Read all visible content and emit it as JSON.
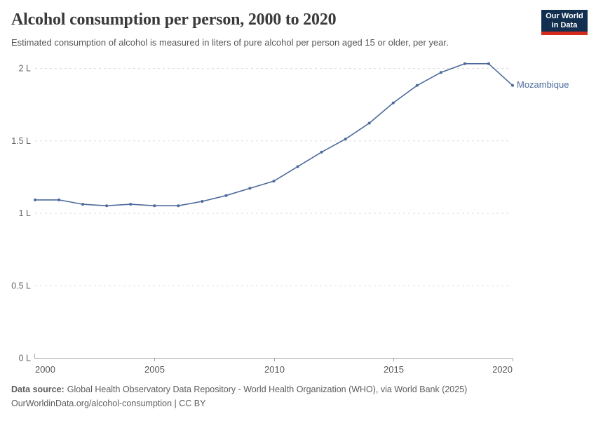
{
  "chart_data": {
    "type": "line",
    "title": "Alcohol consumption per person, 2000 to 2020",
    "subtitle": "Estimated consumption of alcohol is measured in liters of pure alcohol per person aged 15 or older, per year.",
    "x": [
      2000,
      2001,
      2002,
      2003,
      2004,
      2005,
      2006,
      2007,
      2008,
      2009,
      2010,
      2011,
      2012,
      2013,
      2014,
      2015,
      2016,
      2017,
      2018,
      2019,
      2020
    ],
    "series": [
      {
        "name": "Mozambique",
        "color": "#4C6A9C",
        "values": [
          1.09,
          1.09,
          1.06,
          1.05,
          1.06,
          1.05,
          1.05,
          1.08,
          1.12,
          1.17,
          1.22,
          1.32,
          1.42,
          1.51,
          1.62,
          1.76,
          1.88,
          1.97,
          2.03,
          2.03,
          1.88
        ]
      }
    ],
    "xlim": [
      2000,
      2020
    ],
    "ylim": [
      0,
      2
    ],
    "xticks": [
      2000,
      2005,
      2010,
      2015,
      2020
    ],
    "yticks": [
      0,
      0.5,
      1,
      1.5,
      2
    ],
    "ytick_labels": [
      "0 L",
      "0.5 L",
      "1 L",
      "1.5 L",
      "2 L"
    ],
    "unit": "L",
    "grid": "horizontal-dashed",
    "legend_position": "end-of-line"
  },
  "logo": {
    "line1": "Our World",
    "line2": "in Data",
    "bg_color": "#132F4F",
    "accent_color": "#D52B1E"
  },
  "footer": {
    "source_label": "Data source:",
    "source_text": "Global Health Observatory Data Repository - World Health Organization (WHO), via World Bank (2025)",
    "citation": "OurWorldinData.org/alcohol-consumption | CC BY"
  },
  "colors": {
    "line": "#4C6A9C",
    "grid": "#dddddd",
    "axis": "#a6a6a6",
    "y_tick_text": "#666666",
    "x_tick_text": "#565656"
  }
}
